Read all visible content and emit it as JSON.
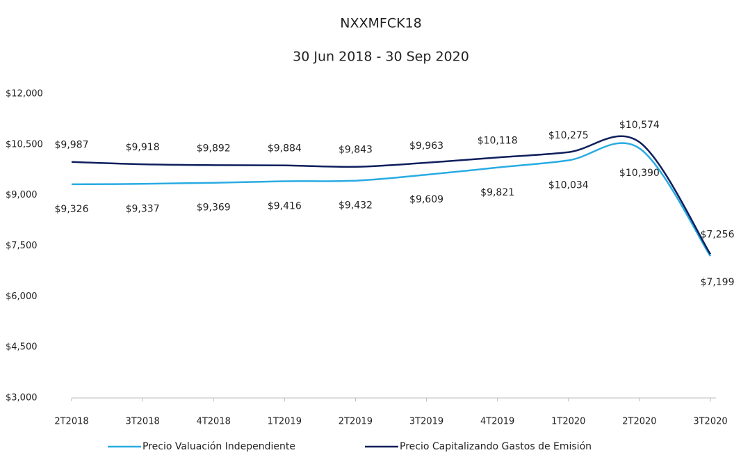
{
  "chart_data": {
    "type": "line",
    "title": "NXXMFCK18",
    "subtitle": "30 Jun 2018  -  30 Sep 2020",
    "categories": [
      "2T2018",
      "3T2018",
      "4T2018",
      "1T2019",
      "2T2019",
      "3T2019",
      "4T2019",
      "1T2020",
      "2T2020",
      "3T2020"
    ],
    "series": [
      {
        "name": "Precio Valuación Independiente",
        "color": "#29abe2",
        "values": [
          9326,
          9337,
          9369,
          9416,
          9432,
          9609,
          9821,
          10034,
          10390,
          7199
        ],
        "value_labels": [
          "$9,326",
          "$9,337",
          "$9,369",
          "$9,416",
          "$9,432",
          "$9,609",
          "$9,821",
          "$10,034",
          "$10,390",
          "$7,199"
        ]
      },
      {
        "name": "Precio Capitalizando Gastos de Emisión",
        "color": "#0d1f5c",
        "values": [
          9987,
          9918,
          9892,
          9884,
          9843,
          9963,
          10118,
          10275,
          10574,
          7256
        ],
        "value_labels": [
          "$9,987",
          "$9,918",
          "$9,892",
          "$9,884",
          "$9,843",
          "$9,963",
          "$10,118",
          "$10,275",
          "$10,574",
          "$7,256"
        ]
      }
    ],
    "ylim": [
      3000,
      12000
    ],
    "yticks": [
      {
        "value": 3000,
        "label": "$3,000"
      },
      {
        "value": 4500,
        "label": "$4,500"
      },
      {
        "value": 6000,
        "label": "$6,000"
      },
      {
        "value": 7500,
        "label": "$7,500"
      },
      {
        "value": 9000,
        "label": "$9,000"
      },
      {
        "value": 10500,
        "label": "$10,500"
      },
      {
        "value": 12000,
        "label": "$12,000"
      }
    ],
    "legend": "bottom"
  }
}
